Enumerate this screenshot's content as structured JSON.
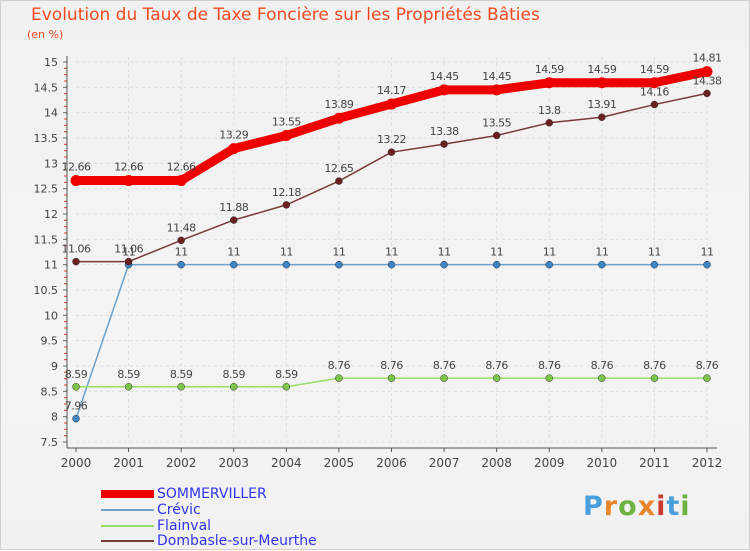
{
  "title": "Evolution du Taux de Taxe Foncière sur les Propriétés Bâties",
  "unit_label": "(en %)",
  "logo": {
    "text": "Proxiti",
    "letters": [
      "P",
      "r",
      "o",
      "x",
      "i",
      "t",
      "i"
    ],
    "colors": [
      "#4aa0dc",
      "#e8862b",
      "#6cb33f",
      "#e8862b",
      "#c83a2e",
      "#4aa0dc",
      "#6cb33f"
    ]
  },
  "chart_data": {
    "type": "line",
    "title": "Evolution du Taux de Taxe Foncière sur les Propriétés Bâties",
    "ylabel": "(en %)",
    "xlabel": "",
    "x": [
      "2000",
      "2001",
      "2002",
      "2003",
      "2004",
      "2005",
      "2006",
      "2007",
      "2008",
      "2009",
      "2010",
      "2011",
      "2012"
    ],
    "ylim": [
      7.5,
      15
    ],
    "yticks": [
      "7.5",
      "8",
      "8.5",
      "9",
      "9.5",
      "10",
      "10.5",
      "11",
      "11.5",
      "12",
      "12.5",
      "13",
      "13.5",
      "14",
      "14.5",
      "15"
    ],
    "series": [
      {
        "name": "SOMMERVILLER",
        "color": "#ee0000",
        "values": [
          12.66,
          12.66,
          12.66,
          13.29,
          13.55,
          13.89,
          14.17,
          14.45,
          14.45,
          14.59,
          14.59,
          14.59,
          14.81
        ],
        "labels": [
          "12.66",
          "12.66",
          "12.66",
          "13.29",
          "13.55",
          "13.89",
          "14.17",
          "14.45",
          "14.45",
          "14.59",
          "14.59",
          "14.59",
          "14.81"
        ]
      },
      {
        "name": "Crévic",
        "color": "#6fa0cc",
        "values": [
          7.96,
          11,
          11,
          11,
          11,
          11,
          11,
          11,
          11,
          11,
          11,
          11,
          11
        ],
        "labels": [
          "7.96",
          "11",
          "11",
          "11",
          "11",
          "11",
          "11",
          "11",
          "11",
          "11",
          "11",
          "11",
          "11"
        ]
      },
      {
        "name": "Flainval",
        "color": "#99dd66",
        "values": [
          8.59,
          8.59,
          8.59,
          8.59,
          8.59,
          8.76,
          8.76,
          8.76,
          8.76,
          8.76,
          8.76,
          8.76,
          8.76
        ],
        "labels": [
          "8.59",
          "8.59",
          "8.59",
          "8.59",
          "8.59",
          "8.76",
          "8.76",
          "8.76",
          "8.76",
          "8.76",
          "8.76",
          "8.76",
          "8.76"
        ]
      },
      {
        "name": "Dombasle-sur-Meurthe",
        "color": "#7a3a3a",
        "values": [
          11.06,
          11.06,
          11.48,
          11.88,
          12.18,
          12.65,
          13.22,
          13.38,
          13.55,
          13.8,
          13.91,
          14.16,
          14.38
        ],
        "labels": [
          "11.06",
          "11.06",
          "11.48",
          "11.88",
          "12.18",
          "12.65",
          "13.22",
          "13.38",
          "13.55",
          "13.8",
          "13.91",
          "14.16",
          "14.38"
        ]
      }
    ],
    "legend": [
      "SOMMERVILLER",
      "Crévic",
      "Flainval",
      "Dombasle-sur-Meurthe"
    ],
    "grid": true,
    "legend_position": "bottom-left"
  }
}
